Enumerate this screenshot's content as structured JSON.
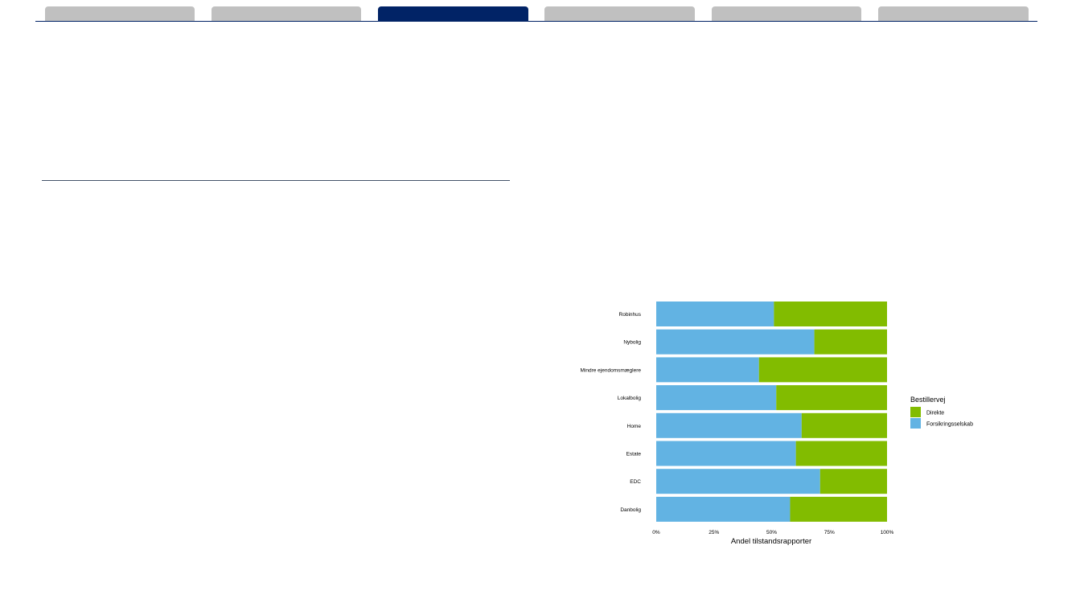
{
  "tabs": {
    "count": 6,
    "active_index": 2,
    "inactive_color": "#c0c0c0",
    "active_color": "#012366"
  },
  "chart_data": {
    "type": "bar",
    "orientation": "horizontal",
    "stacked": true,
    "categories": [
      "Robinhus",
      "Nybolig",
      "Mindre ejendomsmæglere",
      "Lokalbolig",
      "Home",
      "Estate",
      "EDC",
      "Danbolig"
    ],
    "series": [
      {
        "name": "Forsikringsselskab",
        "color": "#62b3e3",
        "values": [
          0.51,
          0.685,
          0.445,
          0.52,
          0.63,
          0.605,
          0.71,
          0.58
        ]
      },
      {
        "name": "Direkte",
        "color": "#82bc00",
        "values": [
          0.49,
          0.315,
          0.555,
          0.48,
          0.37,
          0.395,
          0.29,
          0.42
        ]
      }
    ],
    "xlabel": "Andel tilstandsrapporter",
    "x_ticks": [
      "0%",
      "25%",
      "50%",
      "75%",
      "100%"
    ],
    "xlim": [
      0,
      1
    ],
    "grid": false,
    "legend": {
      "title": "Bestillervej",
      "position": "right",
      "entries": [
        {
          "name": "Direkte",
          "color": "#82bc00"
        },
        {
          "name": "Forsikringsselskab",
          "color": "#62b3e3"
        }
      ]
    }
  }
}
